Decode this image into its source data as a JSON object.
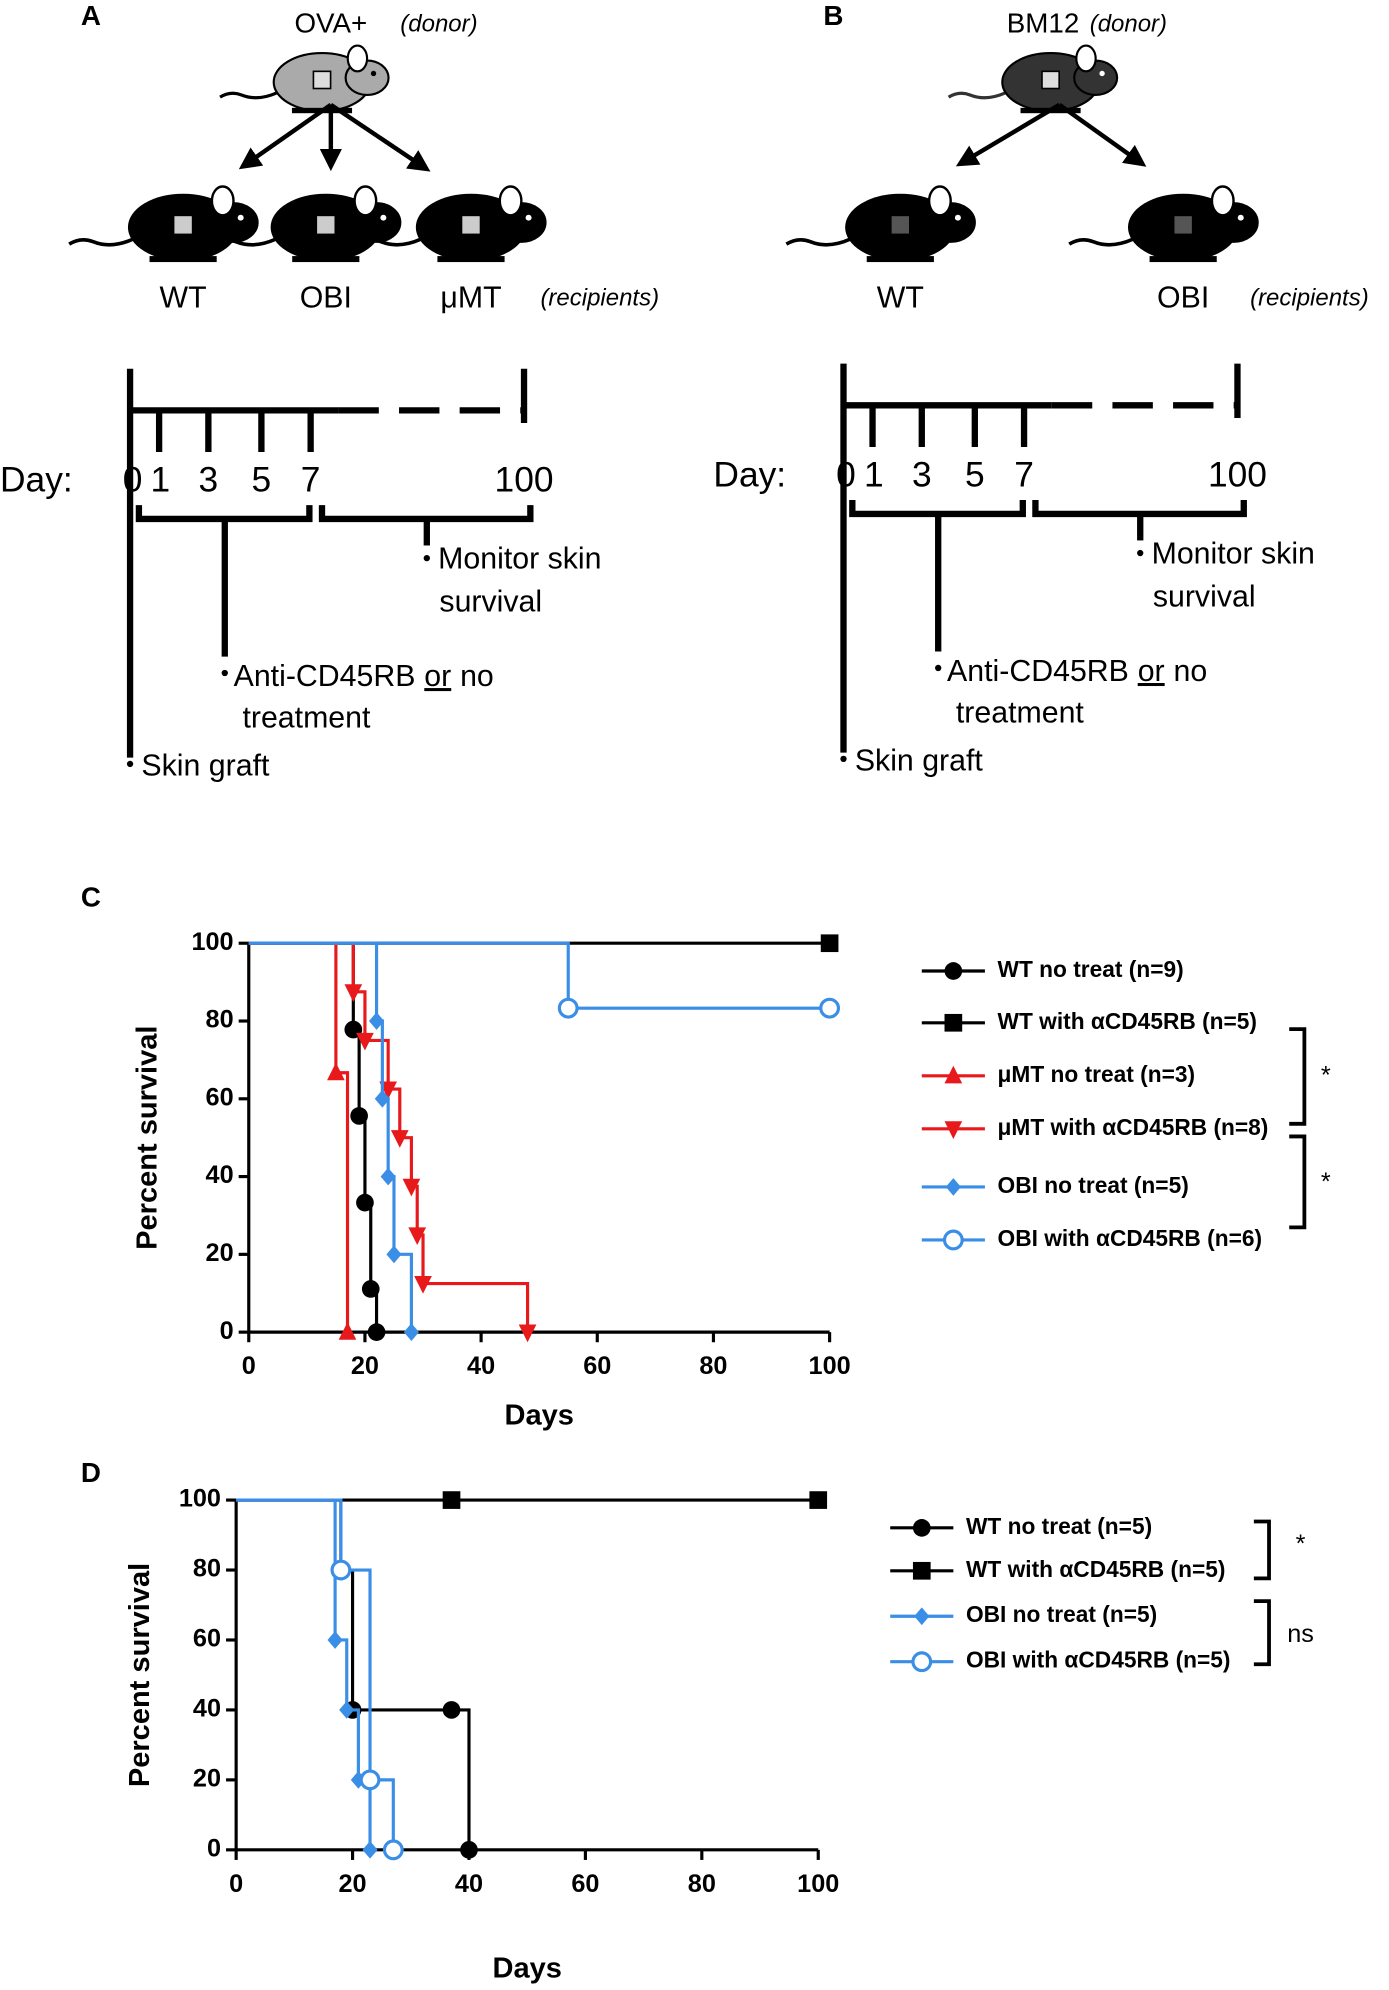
{
  "panel_a": {
    "label": "A",
    "donor": "OVA+",
    "donor_note": "(donor)",
    "recipients": [
      "WT",
      "OBI",
      "μMT"
    ],
    "recipients_note": "(recipients)",
    "day_label": "Day:",
    "days": [
      0,
      1,
      3,
      5,
      7,
      100
    ],
    "monitor": [
      "Monitor skin",
      "survival"
    ],
    "treatment": [
      "Anti-CD45RB",
      "or",
      "no",
      "treatment"
    ],
    "graft": "Skin graft"
  },
  "panel_b": {
    "label": "B",
    "donor": "BM12",
    "donor_note": "(donor)",
    "recipients": [
      "WT",
      "OBI"
    ],
    "recipients_note": "(recipients)",
    "day_label": "Day:",
    "days": [
      0,
      1,
      3,
      5,
      7,
      100
    ],
    "monitor": [
      "Monitor skin",
      "survival"
    ],
    "treatment": [
      "Anti-CD45RB",
      "or",
      "no",
      "treatment"
    ],
    "graft": "Skin graft"
  },
  "chart_data": [
    {
      "type": "survival",
      "label": "C",
      "x_label": "Days",
      "y_label": "Percent survival",
      "xlim": [
        0,
        100
      ],
      "xticks": [
        0,
        20,
        40,
        60,
        80,
        100
      ],
      "ylim": [
        0,
        100
      ],
      "yticks": [
        0,
        20,
        40,
        60,
        80,
        100
      ],
      "series": [
        {
          "name": "WT no treat (n=9)",
          "color": "#000000",
          "marker": "circle",
          "x": [
            0,
            18,
            19,
            20,
            21,
            22
          ],
          "values": [
            100,
            77.8,
            55.6,
            33.3,
            11.1,
            0
          ]
        },
        {
          "name": "WT with αCD45RB (n=5)",
          "color": "#000000",
          "marker": "square",
          "x": [
            0,
            100
          ],
          "values": [
            100,
            100
          ]
        },
        {
          "name": "μMT no treat (n=3)",
          "color": "#e8191b",
          "marker": "triangle-up",
          "x": [
            0,
            15,
            17
          ],
          "values": [
            100,
            66.7,
            0
          ]
        },
        {
          "name": "μMT with αCD45RB (n=8)",
          "color": "#e8191b",
          "marker": "triangle-down",
          "x": [
            0,
            18,
            20,
            24,
            26,
            28,
            29,
            30,
            48
          ],
          "values": [
            100,
            87.5,
            75,
            62.5,
            50,
            37.5,
            25,
            12.5,
            0
          ]
        },
        {
          "name": "OBI no treat (n=5)",
          "color": "#3a8ee6",
          "marker": "diamond",
          "x": [
            0,
            22,
            23,
            24,
            25,
            28
          ],
          "values": [
            100,
            80,
            60,
            40,
            20,
            0
          ]
        },
        {
          "name": "OBI with αCD45RB (n=6)",
          "color": "#3a8ee6",
          "marker": "circle-open",
          "x": [
            0,
            55,
            100
          ],
          "values": [
            100,
            83.3,
            83.3
          ]
        }
      ],
      "annotations": [
        "*",
        "*"
      ]
    },
    {
      "type": "survival",
      "label": "D",
      "x_label": "Days",
      "y_label": "Percent survival",
      "xlim": [
        0,
        100
      ],
      "xticks": [
        0,
        20,
        40,
        60,
        80,
        100
      ],
      "ylim": [
        0,
        100
      ],
      "yticks": [
        0,
        20,
        40,
        60,
        80,
        100
      ],
      "series": [
        {
          "name": "WT no treat (n=5)",
          "color": "#000000",
          "marker": "circle",
          "x": [
            0,
            18,
            20,
            37,
            40
          ],
          "values": [
            100,
            80,
            40,
            40,
            0
          ]
        },
        {
          "name": "WT with αCD45RB (n=5)",
          "color": "#000000",
          "marker": "square",
          "x": [
            0,
            37,
            100
          ],
          "values": [
            100,
            100,
            100
          ]
        },
        {
          "name": "OBI no treat (n=5)",
          "color": "#3a8ee6",
          "marker": "diamond",
          "x": [
            0,
            17,
            19,
            21,
            23
          ],
          "values": [
            100,
            60,
            40,
            20,
            0
          ]
        },
        {
          "name": "OBI with αCD45RB (n=5)",
          "color": "#3a8ee6",
          "marker": "circle-open",
          "x": [
            0,
            18,
            23,
            27
          ],
          "values": [
            100,
            80,
            20,
            0
          ]
        }
      ],
      "annotations": [
        "*",
        "ns"
      ]
    }
  ]
}
